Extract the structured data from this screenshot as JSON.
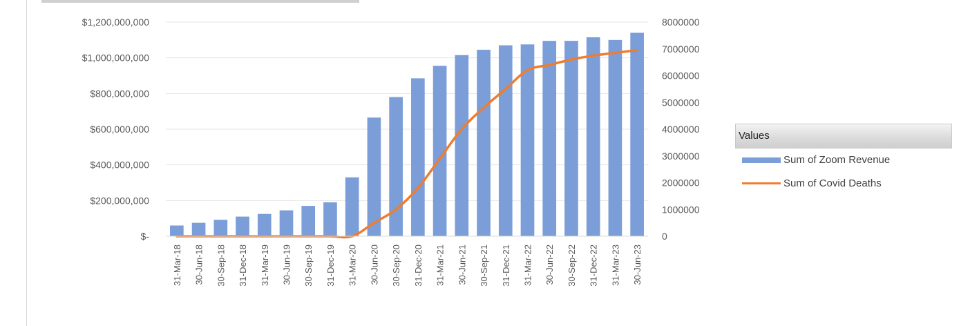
{
  "chart_data": {
    "type": "bar",
    "categories": [
      "31-Mar-18",
      "30-Jun-18",
      "30-Sep-18",
      "31-Dec-18",
      "31-Mar-19",
      "30-Jun-19",
      "30-Sep-19",
      "31-Dec-19",
      "31-Mar-20",
      "30-Jun-20",
      "30-Sep-20",
      "31-Dec-20",
      "31-Mar-21",
      "30-Jun-21",
      "30-Sep-21",
      "31-Dec-21",
      "31-Mar-22",
      "30-Jun-22",
      "30-Sep-22",
      "31-Dec-22",
      "31-Mar-23",
      "30-Jun-23"
    ],
    "series": [
      {
        "name": "Sum of  Zoom Revenue",
        "type": "bar",
        "axis": "left",
        "color": "#7b9ed9",
        "values": [
          60000000,
          75000000,
          92000000,
          110000000,
          125000000,
          145000000,
          170000000,
          190000000,
          330000000,
          665000000,
          780000000,
          885000000,
          955000000,
          1015000000,
          1045000000,
          1070000000,
          1075000000,
          1095000000,
          1095000000,
          1115000000,
          1100000000,
          1140000000
        ]
      },
      {
        "name": "Sum of Covid Deaths",
        "type": "line",
        "axis": "right",
        "color": "#ed7d31",
        "values": [
          0,
          0,
          0,
          0,
          0,
          0,
          0,
          0,
          0,
          500000,
          1000000,
          1800000,
          2900000,
          4000000,
          4800000,
          5500000,
          6200000,
          6400000,
          6600000,
          6750000,
          6850000,
          6950000
        ]
      }
    ],
    "y_left": {
      "min": 0,
      "max": 1200000000,
      "ticks": [
        {
          "value": 0,
          "label": "$-"
        },
        {
          "value": 200000000,
          "label": "$200,000,000"
        },
        {
          "value": 400000000,
          "label": "$400,000,000"
        },
        {
          "value": 600000000,
          "label": "$600,000,000"
        },
        {
          "value": 800000000,
          "label": "$800,000,000"
        },
        {
          "value": 1000000000,
          "label": "$1,000,000,000"
        },
        {
          "value": 1200000000,
          "label": "$1,200,000,000"
        }
      ]
    },
    "y_right": {
      "min": 0,
      "max": 8000000,
      "ticks": [
        {
          "value": 0,
          "label": "0"
        },
        {
          "value": 1000000,
          "label": "1000000"
        },
        {
          "value": 2000000,
          "label": "2000000"
        },
        {
          "value": 3000000,
          "label": "3000000"
        },
        {
          "value": 4000000,
          "label": "4000000"
        },
        {
          "value": 5000000,
          "label": "5000000"
        },
        {
          "value": 6000000,
          "label": "6000000"
        },
        {
          "value": 7000000,
          "label": "7000000"
        },
        {
          "value": 8000000,
          "label": "8000000"
        }
      ]
    },
    "grid": true,
    "legend": {
      "position": "right",
      "title": "Values",
      "items": [
        "Sum of  Zoom Revenue",
        "Sum of Covid Deaths"
      ]
    },
    "colors": {
      "bar": "#7b9ed9",
      "line": "#ed7d31",
      "grid": "#e6e6e6",
      "tick_text": "#595959"
    }
  }
}
